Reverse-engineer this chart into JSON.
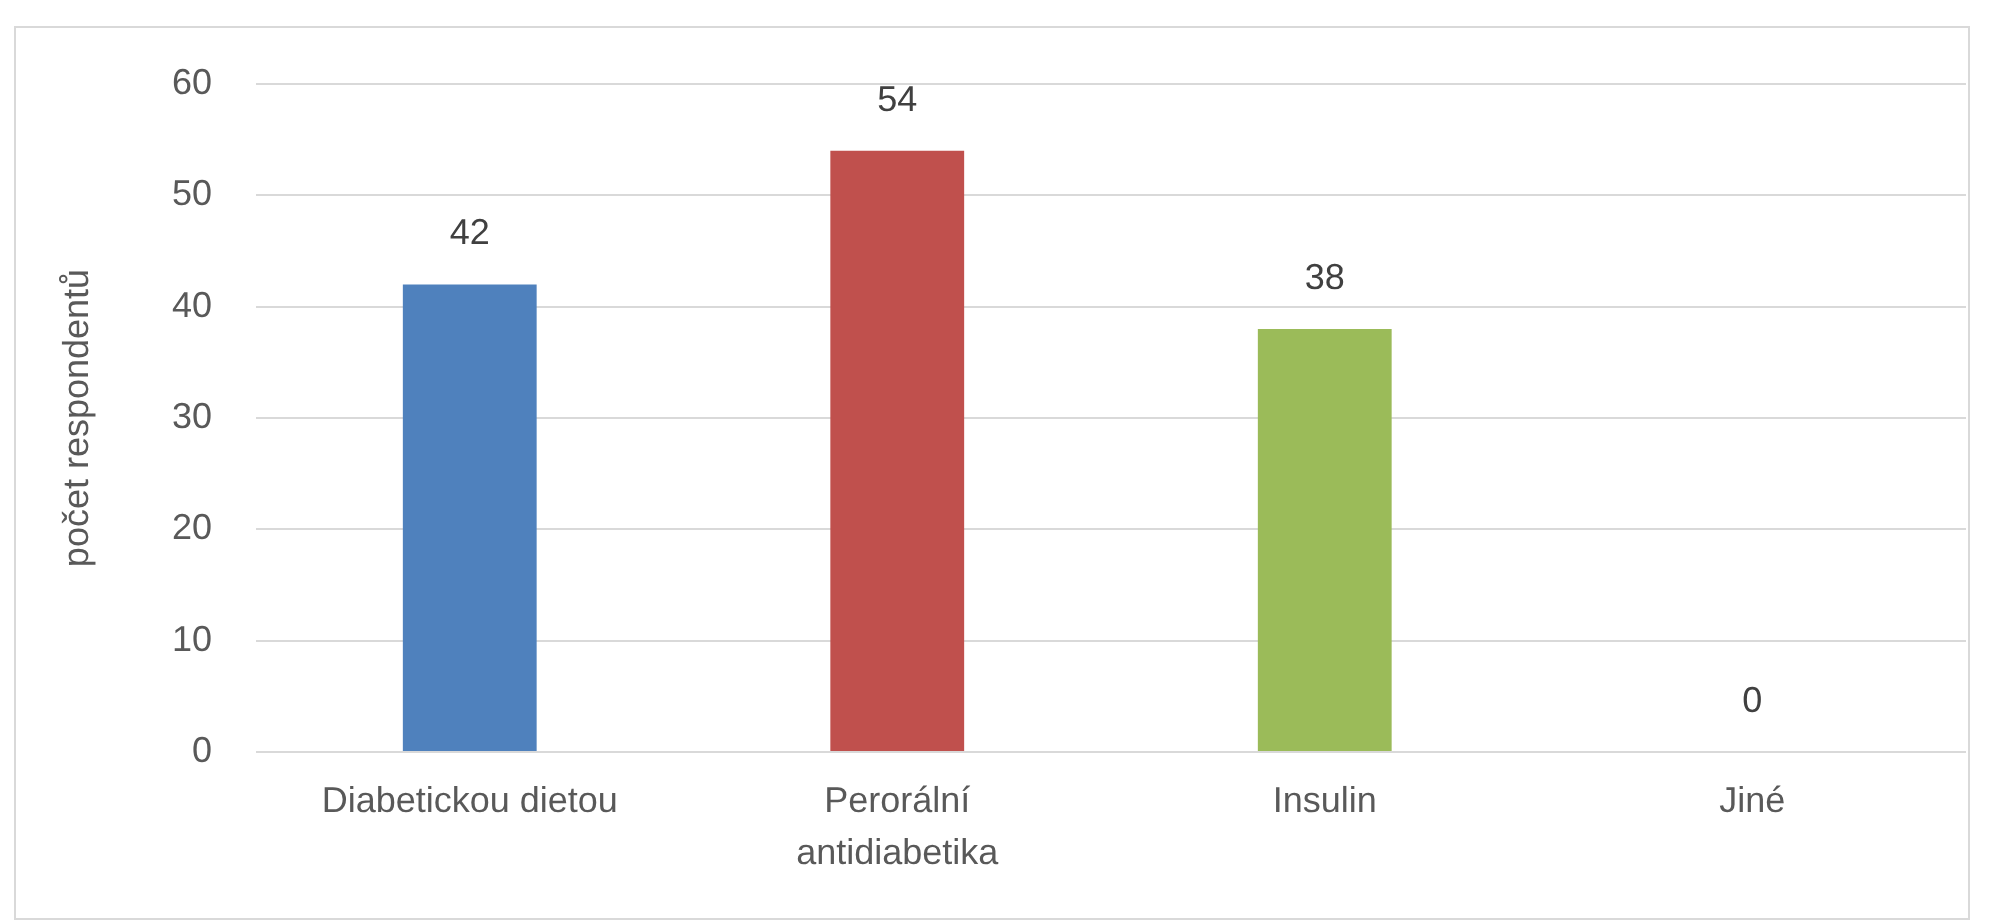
{
  "chart_data": {
    "type": "bar",
    "ylabel": "počet respondentů",
    "categories": [
      "Diabetickou dietou",
      "Perorální antidiabetika",
      "Insulin",
      "Jiné"
    ],
    "values": [
      42,
      54,
      38,
      0
    ],
    "colors": [
      "#4f81bd",
      "#c0504d",
      "#9bbb59",
      "#8064a2"
    ],
    "ylim": [
      0,
      60
    ],
    "yticks": [
      0,
      10,
      20,
      30,
      40,
      50,
      60
    ],
    "grid": "y",
    "data_labels": true
  }
}
